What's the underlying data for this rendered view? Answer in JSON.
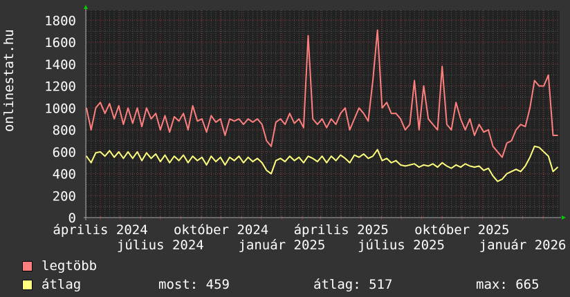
{
  "chart_data": {
    "type": "line",
    "ylabel": "onlinestat.hu",
    "ylim": [
      0,
      1890
    ],
    "yticks": [
      0,
      200,
      400,
      600,
      800,
      1000,
      1200,
      1400,
      1600,
      1800
    ],
    "xlim": [
      "2024-03-11",
      "2026-02-26"
    ],
    "xticks": [
      {
        "label": "április 2024",
        "date": "2024-04-01"
      },
      {
        "label": "július 2024",
        "date": "2024-07-01"
      },
      {
        "label": "október 2024",
        "date": "2024-10-01"
      },
      {
        "label": "január 2025",
        "date": "2025-01-01"
      },
      {
        "label": "április 2025",
        "date": "2025-04-01"
      },
      {
        "label": "július 2025",
        "date": "2025-07-01"
      },
      {
        "label": "október 2025",
        "date": "2025-10-01"
      },
      {
        "label": "január 2026",
        "date": "2026-01-01"
      }
    ],
    "grid": true,
    "colors": {
      "background": "#333333",
      "plot": "#222222",
      "legtobb": "#ff7f7f",
      "atlag": "#ffff7f",
      "grid_major": "#8b3a3a",
      "grid_minor": "#555555",
      "arrow": "#00cc00"
    },
    "series": [
      {
        "name": "legtöbb",
        "color": "#ff7f7f"
      },
      {
        "name": "átlag",
        "color": "#ffff7f"
      }
    ],
    "points": [
      [
        "2024-03-11",
        1000,
        560
      ],
      [
        "2024-03-18",
        800,
        500
      ],
      [
        "2024-03-25",
        1000,
        590
      ],
      [
        "2024-04-01",
        1050,
        600
      ],
      [
        "2024-04-08",
        950,
        560
      ],
      [
        "2024-04-15",
        1040,
        610
      ],
      [
        "2024-04-22",
        900,
        550
      ],
      [
        "2024-04-29",
        1020,
        600
      ],
      [
        "2024-05-06",
        850,
        540
      ],
      [
        "2024-05-13",
        1000,
        600
      ],
      [
        "2024-05-20",
        860,
        540
      ],
      [
        "2024-05-27",
        1000,
        600
      ],
      [
        "2024-06-03",
        830,
        520
      ],
      [
        "2024-06-10",
        1000,
        590
      ],
      [
        "2024-06-17",
        900,
        540
      ],
      [
        "2024-06-24",
        950,
        580
      ],
      [
        "2024-07-01",
        800,
        510
      ],
      [
        "2024-07-08",
        930,
        570
      ],
      [
        "2024-07-15",
        780,
        500
      ],
      [
        "2024-07-22",
        920,
        560
      ],
      [
        "2024-07-29",
        880,
        520
      ],
      [
        "2024-08-05",
        950,
        570
      ],
      [
        "2024-08-12",
        800,
        500
      ],
      [
        "2024-08-19",
        1020,
        560
      ],
      [
        "2024-08-26",
        880,
        520
      ],
      [
        "2024-09-02",
        900,
        550
      ],
      [
        "2024-09-09",
        780,
        480
      ],
      [
        "2024-09-16",
        930,
        560
      ],
      [
        "2024-09-23",
        870,
        510
      ],
      [
        "2024-09-30",
        900,
        550
      ],
      [
        "2024-10-07",
        750,
        480
      ],
      [
        "2024-10-14",
        900,
        550
      ],
      [
        "2024-10-21",
        880,
        520
      ],
      [
        "2024-10-28",
        900,
        560
      ],
      [
        "2024-11-04",
        850,
        500
      ],
      [
        "2024-11-11",
        900,
        550
      ],
      [
        "2024-11-18",
        870,
        510
      ],
      [
        "2024-11-25",
        900,
        540
      ],
      [
        "2024-12-02",
        850,
        500
      ],
      [
        "2024-12-09",
        700,
        430
      ],
      [
        "2024-12-16",
        650,
        400
      ],
      [
        "2024-12-23",
        870,
        520
      ],
      [
        "2024-12-30",
        900,
        540
      ],
      [
        "2025-01-06",
        850,
        510
      ],
      [
        "2025-01-13",
        950,
        560
      ],
      [
        "2025-01-20",
        860,
        520
      ],
      [
        "2025-01-27",
        900,
        550
      ],
      [
        "2025-02-03",
        820,
        500
      ],
      [
        "2025-02-10",
        1660,
        560
      ],
      [
        "2025-02-17",
        900,
        540
      ],
      [
        "2025-02-24",
        850,
        510
      ],
      [
        "2025-03-03",
        900,
        560
      ],
      [
        "2025-03-10",
        820,
        500
      ],
      [
        "2025-03-17",
        900,
        560
      ],
      [
        "2025-03-24",
        850,
        520
      ],
      [
        "2025-03-31",
        950,
        570
      ],
      [
        "2025-04-07",
        1000,
        540
      ],
      [
        "2025-04-14",
        800,
        500
      ],
      [
        "2025-04-21",
        900,
        570
      ],
      [
        "2025-04-28",
        1000,
        550
      ],
      [
        "2025-05-05",
        950,
        580
      ],
      [
        "2025-05-12",
        880,
        540
      ],
      [
        "2025-05-19",
        1250,
        560
      ],
      [
        "2025-05-26",
        1710,
        620
      ],
      [
        "2025-06-02",
        1000,
        520
      ],
      [
        "2025-06-09",
        1050,
        540
      ],
      [
        "2025-06-16",
        950,
        500
      ],
      [
        "2025-06-23",
        950,
        520
      ],
      [
        "2025-06-30",
        900,
        480
      ],
      [
        "2025-07-07",
        800,
        470
      ],
      [
        "2025-07-14",
        850,
        480
      ],
      [
        "2025-07-21",
        1250,
        490
      ],
      [
        "2025-07-28",
        800,
        460
      ],
      [
        "2025-08-04",
        1200,
        480
      ],
      [
        "2025-08-11",
        900,
        470
      ],
      [
        "2025-08-18",
        850,
        490
      ],
      [
        "2025-08-25",
        800,
        460
      ],
      [
        "2025-09-01",
        1380,
        500
      ],
      [
        "2025-09-08",
        850,
        470
      ],
      [
        "2025-09-15",
        800,
        450
      ],
      [
        "2025-09-22",
        1050,
        480
      ],
      [
        "2025-09-29",
        900,
        460
      ],
      [
        "2025-10-06",
        800,
        490
      ],
      [
        "2025-10-13",
        900,
        470
      ],
      [
        "2025-10-20",
        750,
        460
      ],
      [
        "2025-10-27",
        850,
        470
      ],
      [
        "2025-11-03",
        780,
        430
      ],
      [
        "2025-11-10",
        800,
        450
      ],
      [
        "2025-11-17",
        650,
        380
      ],
      [
        "2025-11-24",
        600,
        330
      ],
      [
        "2025-12-01",
        550,
        350
      ],
      [
        "2025-12-08",
        680,
        400
      ],
      [
        "2025-12-15",
        700,
        420
      ],
      [
        "2025-12-22",
        800,
        440
      ],
      [
        "2025-12-29",
        850,
        420
      ],
      [
        "2026-01-05",
        830,
        470
      ],
      [
        "2026-01-12",
        1000,
        550
      ],
      [
        "2026-01-19",
        1250,
        650
      ],
      [
        "2026-01-26",
        1200,
        640
      ],
      [
        "2026-02-02",
        1200,
        600
      ],
      [
        "2026-02-09",
        1300,
        560
      ],
      [
        "2026-02-16",
        750,
        420
      ],
      [
        "2026-02-23",
        750,
        459
      ]
    ]
  },
  "legend": {
    "legtobb": "legtöbb",
    "atlag": "átlag",
    "most": "most: 459",
    "atlag_stat": "átlag: 517",
    "max": "max: 665"
  }
}
